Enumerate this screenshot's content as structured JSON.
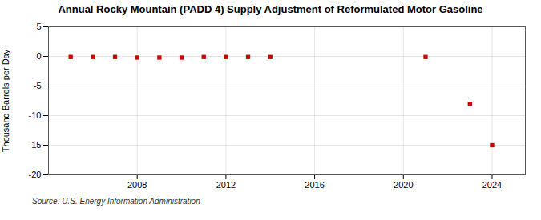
{
  "chart_data": {
    "type": "scatter",
    "title": "Annual Rocky Mountain (PADD 4) Supply Adjustment of Reformulated Motor Gasoline",
    "ylabel": "Thousand Barrels per Day",
    "annotation": "Source: U.S. Energy Information Administration",
    "x": [
      2005,
      2006,
      2007,
      2008,
      2009,
      2010,
      2011,
      2012,
      2013,
      2014,
      2021,
      2023,
      2024
    ],
    "values": [
      -0.1,
      -0.1,
      -0.1,
      -0.2,
      -0.2,
      -0.2,
      -0.1,
      -0.1,
      -0.1,
      -0.1,
      -0.1,
      -8.0,
      -15.0
    ],
    "color": "#cc0000",
    "marker": "square",
    "xlim": [
      2004,
      2025.5
    ],
    "ylim": [
      -20,
      5
    ],
    "xticks": [
      2008,
      2012,
      2016,
      2020,
      2024
    ],
    "yticks": [
      5,
      0,
      -5,
      -10,
      -15,
      -20
    ],
    "grid": true
  }
}
